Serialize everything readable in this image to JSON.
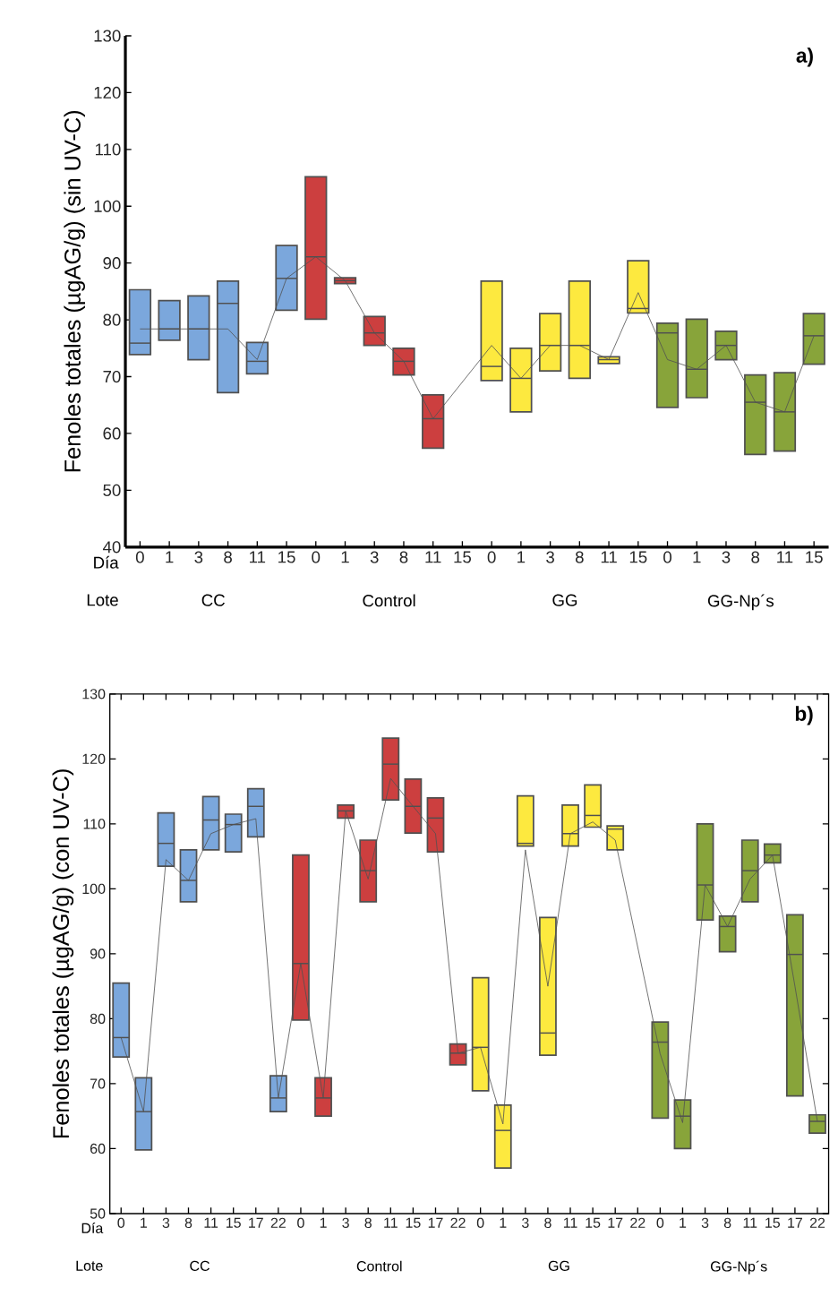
{
  "chart_data": [
    {
      "type": "box",
      "ylabel": "Fenoles totales (µgAG/g) (sin UV-C)",
      "categories": [
        "0",
        "1",
        "3",
        "8",
        "11",
        "15",
        "0",
        "1",
        "3",
        "8",
        "11",
        "15",
        "0",
        "1",
        "3",
        "8",
        "11",
        "15",
        "0",
        "1",
        "3",
        "8",
        "11",
        "15"
      ],
      "boxes": [
        {
          "low": 73.9,
          "q1": 73.9,
          "median": 75.9,
          "q3": 85.3,
          "high": 85.3
        },
        {
          "low": 76.4,
          "q1": 76.4,
          "median": 78.4,
          "q3": 83.4,
          "high": 83.4
        },
        {
          "low": 73.0,
          "q1": 73.0,
          "median": 78.4,
          "q3": 84.2,
          "high": 84.2
        },
        {
          "low": 67.2,
          "q1": 67.2,
          "median": 82.9,
          "q3": 86.8,
          "high": 86.8
        },
        {
          "low": 70.5,
          "q1": 70.5,
          "median": 72.7,
          "q3": 76.0,
          "high": 76.0
        },
        {
          "low": 81.7,
          "q1": 81.7,
          "median": 87.3,
          "q3": 93.1,
          "high": 93.1
        },
        {
          "low": 80.1,
          "q1": 80.1,
          "median": 91.1,
          "q3": 105.2,
          "high": 105.2
        },
        {
          "low": 86.4,
          "q1": 86.4,
          "median": 86.9,
          "q3": 87.4,
          "high": 87.4
        },
        {
          "low": 75.5,
          "q1": 75.5,
          "median": 77.7,
          "q3": 80.6,
          "high": 80.6
        },
        {
          "low": 70.3,
          "q1": 70.3,
          "median": 72.7,
          "q3": 75.0,
          "high": 75.0
        },
        {
          "low": 57.4,
          "q1": 57.4,
          "median": 62.6,
          "q3": 66.8,
          "high": 66.8
        },
        null,
        {
          "low": 69.3,
          "q1": 69.3,
          "median": 71.8,
          "q3": 86.8,
          "high": 86.8
        },
        {
          "low": 63.8,
          "q1": 63.8,
          "median": 69.7,
          "q3": 75.0,
          "high": 75.0
        },
        {
          "low": 71.0,
          "q1": 71.0,
          "median": 75.5,
          "q3": 81.1,
          "high": 81.1
        },
        {
          "low": 69.7,
          "q1": 69.7,
          "median": 75.5,
          "q3": 86.8,
          "high": 86.8
        },
        {
          "low": 72.3,
          "q1": 72.3,
          "median": 73.0,
          "q3": 73.5,
          "high": 73.5
        },
        {
          "low": 81.2,
          "q1": 81.2,
          "median": 82.0,
          "q3": 90.4,
          "high": 90.4
        },
        {
          "low": 64.6,
          "q1": 64.6,
          "median": 77.7,
          "q3": 79.4,
          "high": 79.4
        },
        {
          "low": 66.3,
          "q1": 66.3,
          "median": 71.3,
          "q3": 80.1,
          "high": 80.1
        },
        {
          "low": 73.0,
          "q1": 73.0,
          "median": 75.5,
          "q3": 78.0,
          "high": 78.0
        },
        {
          "low": 56.3,
          "q1": 56.3,
          "median": 65.5,
          "q3": 70.3,
          "high": 70.3
        },
        {
          "low": 56.9,
          "q1": 56.9,
          "median": 63.8,
          "q3": 70.7,
          "high": 70.7
        },
        {
          "low": 72.2,
          "q1": 72.2,
          "median": 77.2,
          "q3": 81.1,
          "high": 81.1
        }
      ],
      "colors": [
        "#7ba7dc",
        "#7ba7dc",
        "#7ba7dc",
        "#7ba7dc",
        "#7ba7dc",
        "#7ba7dc",
        "#cc3f3f",
        "#cc3f3f",
        "#cc3f3f",
        "#cc3f3f",
        "#cc3f3f",
        null,
        "#fde93f",
        "#fde93f",
        "#fde93f",
        "#fde93f",
        "#fde93f",
        "#fde93f",
        "#88a43a",
        "#88a43a",
        "#88a43a",
        "#88a43a",
        "#88a43a",
        "#88a43a"
      ],
      "series": [
        {
          "type": "line",
          "color": "#505050",
          "values": [
            78.4,
            78.4,
            78.4,
            78.4,
            73.0,
            87.3,
            91.1,
            86.9,
            77.7,
            72.7,
            62.6,
            null,
            75.5,
            69.7,
            75.5,
            75.5,
            73.0,
            84.8,
            73.0,
            71.3,
            75.5,
            65.5,
            63.8,
            77.2
          ]
        }
      ],
      "ylim": [
        40,
        130
      ],
      "yticks": [
        40,
        50,
        60,
        70,
        80,
        90,
        100,
        110,
        120,
        130
      ],
      "annotations": [
        "a)",
        "Día",
        "Lote",
        "CC",
        "Control",
        "GG",
        "GG-Np´s"
      ]
    },
    {
      "type": "box",
      "ylabel": "Fenoles totales (µgAG/g) (con UV-C)",
      "categories": [
        "0",
        "1",
        "3",
        "8",
        "11",
        "15",
        "17",
        "22",
        "0",
        "1",
        "3",
        "8",
        "11",
        "15",
        "17",
        "22",
        "0",
        "1",
        "3",
        "8",
        "11",
        "15",
        "17",
        "22",
        "0",
        "1",
        "3",
        "8",
        "11",
        "15",
        "17",
        "22"
      ],
      "boxes": [
        {
          "low": 74.1,
          "q1": 74.1,
          "median": 77.1,
          "q3": 85.5,
          "high": 85.5
        },
        {
          "low": 59.8,
          "q1": 59.8,
          "median": 65.7,
          "q3": 70.9,
          "high": 70.9
        },
        {
          "low": 103.5,
          "q1": 103.5,
          "median": 107.0,
          "q3": 111.7,
          "high": 111.7
        },
        {
          "low": 98.0,
          "q1": 98.0,
          "median": 101.3,
          "q3": 106.0,
          "high": 106.0
        },
        {
          "low": 106.0,
          "q1": 106.0,
          "median": 110.6,
          "q3": 114.2,
          "high": 114.2
        },
        {
          "low": 105.7,
          "q1": 105.7,
          "median": 109.9,
          "q3": 111.5,
          "high": 111.5
        },
        {
          "low": 108.0,
          "q1": 108.0,
          "median": 112.7,
          "q3": 115.4,
          "high": 115.4
        },
        {
          "low": 65.7,
          "q1": 65.7,
          "median": 67.8,
          "q3": 71.2,
          "high": 71.2
        },
        {
          "low": 79.8,
          "q1": 79.8,
          "median": 88.5,
          "q3": 105.2,
          "high": 105.2
        },
        {
          "low": 65.0,
          "q1": 65.0,
          "median": 67.8,
          "q3": 70.9,
          "high": 70.9
        },
        {
          "low": 110.9,
          "q1": 110.9,
          "median": 112.0,
          "q3": 112.9,
          "high": 112.9
        },
        {
          "low": 98.0,
          "q1": 98.0,
          "median": 102.8,
          "q3": 107.5,
          "high": 107.5
        },
        {
          "low": 113.7,
          "q1": 113.7,
          "median": 119.2,
          "q3": 123.2,
          "high": 123.2
        },
        {
          "low": 108.6,
          "q1": 108.6,
          "median": 112.7,
          "q3": 116.9,
          "high": 116.9
        },
        {
          "low": 105.7,
          "q1": 105.7,
          "median": 110.9,
          "q3": 114.0,
          "high": 114.0
        },
        {
          "low": 72.9,
          "q1": 72.9,
          "median": 74.7,
          "q3": 76.1,
          "high": 76.1
        },
        {
          "low": 68.9,
          "q1": 68.9,
          "median": 75.6,
          "q3": 86.3,
          "high": 86.3
        },
        {
          "low": 57.0,
          "q1": 57.0,
          "median": 62.8,
          "q3": 66.7,
          "high": 66.7
        },
        {
          "low": 106.6,
          "q1": 106.6,
          "median": 107.0,
          "q3": 114.3,
          "high": 114.3
        },
        {
          "low": 74.4,
          "q1": 74.4,
          "median": 77.8,
          "q3": 95.6,
          "high": 95.6
        },
        {
          "low": 106.6,
          "q1": 106.6,
          "median": 108.5,
          "q3": 112.9,
          "high": 112.9
        },
        {
          "low": 109.5,
          "q1": 109.5,
          "median": 111.3,
          "q3": 116.0,
          "high": 116.0
        },
        {
          "low": 106.0,
          "q1": 106.0,
          "median": 109.2,
          "q3": 109.7,
          "high": 109.7
        },
        null,
        {
          "low": 64.7,
          "q1": 64.7,
          "median": 76.4,
          "q3": 79.5,
          "high": 79.5
        },
        {
          "low": 60.0,
          "q1": 60.0,
          "median": 65.0,
          "q3": 67.5,
          "high": 67.5
        },
        {
          "low": 95.2,
          "q1": 95.2,
          "median": 100.6,
          "q3": 110.0,
          "high": 110.0
        },
        {
          "low": 90.3,
          "q1": 90.3,
          "median": 94.2,
          "q3": 95.8,
          "high": 95.8
        },
        {
          "low": 98.0,
          "q1": 98.0,
          "median": 102.8,
          "q3": 107.5,
          "high": 107.5
        },
        {
          "low": 104.0,
          "q1": 104.0,
          "median": 105.2,
          "q3": 106.9,
          "high": 106.9
        },
        {
          "low": 68.1,
          "q1": 68.1,
          "median": 89.9,
          "q3": 96.0,
          "high": 96.0
        },
        {
          "low": 62.4,
          "q1": 62.4,
          "median": 64.2,
          "q3": 65.2,
          "high": 65.2
        }
      ],
      "colors": [
        "#7ba7dc",
        "#7ba7dc",
        "#7ba7dc",
        "#7ba7dc",
        "#7ba7dc",
        "#7ba7dc",
        "#7ba7dc",
        "#7ba7dc",
        "#cc3f3f",
        "#cc3f3f",
        "#cc3f3f",
        "#cc3f3f",
        "#cc3f3f",
        "#cc3f3f",
        "#cc3f3f",
        "#cc3f3f",
        "#fde93f",
        "#fde93f",
        "#fde93f",
        "#fde93f",
        "#fde93f",
        "#fde93f",
        "#fde93f",
        null,
        "#88a43a",
        "#88a43a",
        "#88a43a",
        "#88a43a",
        "#88a43a",
        "#88a43a",
        "#88a43a",
        "#88a43a"
      ],
      "series": [
        {
          "type": "line",
          "color": "#505050",
          "values": [
            77.1,
            65.7,
            104.5,
            101.3,
            108.5,
            109.9,
            110.8,
            67.8,
            88.5,
            67.8,
            112.0,
            101.5,
            117.0,
            112.7,
            108.5,
            74.7,
            75.6,
            63.8,
            106.0,
            85.0,
            108.5,
            110.3,
            107.5,
            null,
            74.6,
            64.0,
            100.6,
            94.2,
            101.5,
            105.2,
            85.0,
            64.2
          ]
        }
      ],
      "ylim": [
        50,
        130
      ],
      "yticks": [
        50,
        60,
        70,
        80,
        90,
        100,
        110,
        120,
        130
      ],
      "annotations": [
        "b)",
        "Día",
        "Lote",
        "CC",
        "Control",
        "GG",
        "GG-Np´s"
      ]
    }
  ]
}
